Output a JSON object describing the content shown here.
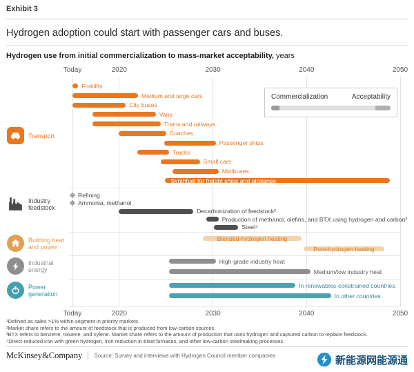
{
  "exhibit_label": "Exhibit 3",
  "title": "Hydrogen adoption could start with passenger cars and buses.",
  "subtitle": {
    "bold": "Hydrogen use from initial commercialization to mass-market acceptability,",
    "unit": " years"
  },
  "legend": {
    "commercialization": "Commercialization",
    "acceptability": "Acceptability"
  },
  "chart_data": {
    "type": "timeline-gantt",
    "unit": "years",
    "axis": {
      "min": 2015,
      "max": 2050,
      "ticks": [
        {
          "label": "Today",
          "year": 2015
        },
        {
          "label": "2020",
          "year": 2020
        },
        {
          "label": "2030",
          "year": 2030
        },
        {
          "label": "2040",
          "year": 2040
        },
        {
          "label": "2050",
          "year": 2050
        }
      ]
    },
    "groups": [
      {
        "id": "transport",
        "label_lines": [
          "Transport"
        ],
        "color": "#e87722",
        "label_color": "#e87722",
        "rows": [
          {
            "label": "Forklifts",
            "start": 2015,
            "end": 2015.6,
            "label_pos": "right"
          },
          {
            "label": "Medium and large cars",
            "start": 2015,
            "end": 2022,
            "label_pos": "right"
          },
          {
            "label": "City buses",
            "start": 2015,
            "end": 2020.7,
            "label_pos": "right"
          },
          {
            "label": "Vans",
            "start": 2017.1,
            "end": 2023.9,
            "label_pos": "right"
          },
          {
            "label": "Trains and railways",
            "start": 2017.1,
            "end": 2024.4,
            "label_pos": "right"
          },
          {
            "label": "Coaches",
            "start": 2019.9,
            "end": 2025,
            "label_pos": "right"
          },
          {
            "label": "Passenger ships",
            "start": 2024.8,
            "end": 2030.3,
            "label_pos": "right"
          },
          {
            "label": "Trucks",
            "start": 2021.9,
            "end": 2025.3,
            "label_pos": "right"
          },
          {
            "label": "Small cars",
            "start": 2024.4,
            "end": 2028.6,
            "label_pos": "right"
          },
          {
            "label": "Minibuses",
            "start": 2025.7,
            "end": 2030.6,
            "label_pos": "right"
          },
          {
            "label": "Synthfuel for freight ships and airplanes",
            "start": 2024.9,
            "end": 2048.9,
            "label_pos": "on-bar"
          }
        ]
      },
      {
        "id": "industry_feedstock",
        "label_lines": [
          "Industry",
          "feedstock"
        ],
        "color": "#4f4f4f",
        "label_color": "#4a4a4a",
        "rows": [
          {
            "label": "Refining",
            "marker": "diamond",
            "start": 2015
          },
          {
            "label": "Ammonia, methanol",
            "marker": "diamond",
            "start": 2015
          },
          {
            "label": "Decarbonization of feedstock²",
            "start": 2019.9,
            "end": 2027.9,
            "label_pos": "right"
          },
          {
            "label": "Production of methanol, olefins, and BTX using hydrogen and carbon³",
            "start": 2029.3,
            "end": 2030.6,
            "label_pos": "right"
          },
          {
            "label": "Steel⁴",
            "start": 2030.1,
            "end": 2032.7,
            "label_pos": "right"
          }
        ]
      },
      {
        "id": "building_heat",
        "label_lines": [
          "Building heat",
          "and power"
        ],
        "color": "#f2d4ab",
        "label_color": "#dd7b24",
        "rows": [
          {
            "label": "Blended-hydrogen heating",
            "start": 2028.9,
            "end": 2039.5,
            "label_pos": "center"
          },
          {
            "label": "Pure-hydrogen heating",
            "start": 2039.7,
            "end": 2048.3,
            "label_pos": "center"
          }
        ]
      },
      {
        "id": "industrial_energy",
        "label_lines": [
          "Industrial",
          "energy"
        ],
        "color": "#8f8f8f",
        "label_color": "#5a5a5a",
        "rows": [
          {
            "label": "High-grade industry heat",
            "start": 2025.3,
            "end": 2030.3,
            "label_pos": "right"
          },
          {
            "label": "Medium/low industry heat",
            "start": 2025.3,
            "end": 2040.4,
            "label_pos": "right"
          }
        ]
      },
      {
        "id": "power_generation",
        "label_lines": [
          "Power",
          "generation"
        ],
        "color": "#4aa3ae",
        "label_color": "#39869b",
        "rows": [
          {
            "label": "In renewables-constrained countries",
            "start": 2025.3,
            "end": 2038.8,
            "label_pos": "right"
          },
          {
            "label": "In other countries",
            "start": 2025.3,
            "end": 2042.6,
            "label_pos": "right"
          }
        ]
      }
    ]
  },
  "footnotes": [
    "¹Defined as sales >1% within segment in priority markets.",
    "²Market share refers to the amount of feedstock that is produced from low-carbon sources.",
    "³BTX refers to benzene, toluene, and xylene. Market share refers to the amount of production that uses hydrogen and captured carbon to replace feedstock.",
    "⁴Direct-reduced iron with green hydrogen, iron reduction in blast furnaces, and other low-carbon steelmaking processes."
  ],
  "footer": {
    "brand": "McKinsey&Company",
    "source": "Source: Survey and interviews with Hydrogen Council member companies"
  },
  "watermark": {
    "text": "新能源网能源通"
  }
}
